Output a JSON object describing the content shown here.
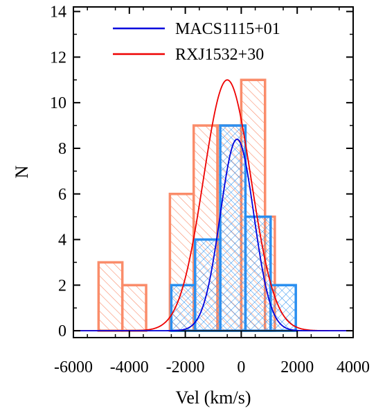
{
  "chart_data": {
    "type": "bar",
    "xlabel": "Vel (km/s)",
    "ylabel": "N",
    "xlim": [
      -6000,
      4000
    ],
    "ylim": [
      -0.3,
      14.2
    ],
    "xticks": [
      "-6000",
      "-4000",
      "-2000",
      "0",
      "2000",
      "4000"
    ],
    "yticks": [
      "0",
      "2",
      "4",
      "6",
      "8",
      "10",
      "12",
      "14"
    ],
    "legend_position": "top-right",
    "series": [
      {
        "name": "RXJ1532+30",
        "color": "#fa8c6a",
        "line_color": "#ee0000",
        "hatch": "diagonal",
        "bins": [
          {
            "x0": -5100,
            "x1": -4250,
            "count": 3
          },
          {
            "x0": -4250,
            "x1": -3400,
            "count": 2
          },
          {
            "x0": -3400,
            "x1": -2550,
            "count": 0
          },
          {
            "x0": -2550,
            "x1": -1700,
            "count": 6
          },
          {
            "x0": -1700,
            "x1": -850,
            "count": 9
          },
          {
            "x0": -850,
            "x1": 0,
            "count": 9
          },
          {
            "x0": 0,
            "x1": 850,
            "count": 11
          },
          {
            "x0": 850,
            "x1": 1200,
            "count": 5
          }
        ],
        "gaussian": {
          "amplitude": 11.0,
          "mean": -500,
          "sigma": 850
        }
      },
      {
        "name": "MACS1115+01",
        "color": "#2a8ff0",
        "line_color": "#0000dd",
        "hatch": "cross",
        "bins": [
          {
            "x0": -2500,
            "x1": -1650,
            "count": 2
          },
          {
            "x0": -1650,
            "x1": -750,
            "count": 4
          },
          {
            "x0": -750,
            "x1": 150,
            "count": 9
          },
          {
            "x0": 150,
            "x1": 1050,
            "count": 5
          },
          {
            "x0": 1050,
            "x1": 1950,
            "count": 2
          }
        ],
        "gaussian": {
          "amplitude": 8.4,
          "mean": -150,
          "sigma": 600
        }
      }
    ]
  }
}
